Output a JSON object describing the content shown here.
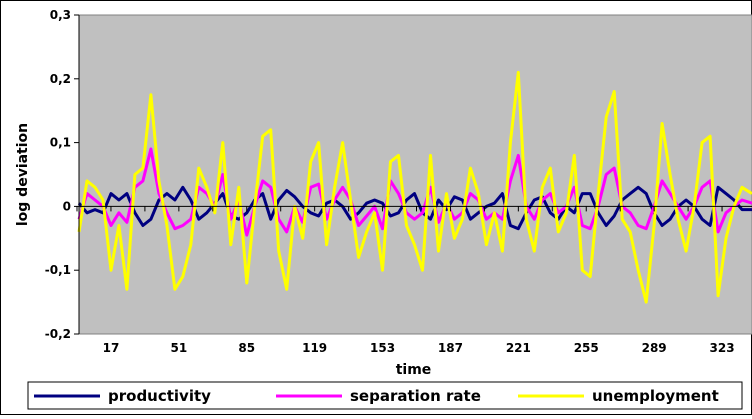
{
  "chart_data": {
    "type": "line",
    "xlabel": "time",
    "ylabel": "log deviation",
    "xlim": [
      1,
      338
    ],
    "ylim": [
      -0.2,
      0.3
    ],
    "x_ticks": [
      17,
      51,
      85,
      119,
      153,
      187,
      221,
      255,
      289,
      323
    ],
    "y_ticks": [
      -0.2,
      -0.1,
      0,
      0.1,
      0.2,
      0.3
    ],
    "y_tick_labels": [
      "-0,2",
      "-0,1",
      "0",
      "0,1",
      "0,2",
      "0,3"
    ],
    "grid": false,
    "plot_background": "#c0c0c0",
    "legend_position": "bottom",
    "series": [
      {
        "name": "productivity",
        "color": "#000080",
        "x": [
          1,
          5,
          9,
          13,
          17,
          21,
          25,
          29,
          33,
          37,
          41,
          45,
          49,
          53,
          57,
          61,
          65,
          69,
          73,
          77,
          81,
          85,
          89,
          93,
          97,
          101,
          105,
          109,
          113,
          117,
          121,
          125,
          129,
          133,
          137,
          141,
          145,
          149,
          153,
          157,
          161,
          165,
          169,
          173,
          177,
          181,
          185,
          189,
          193,
          197,
          201,
          205,
          209,
          213,
          217,
          221,
          225,
          229,
          233,
          237,
          241,
          245,
          249,
          253,
          257,
          261,
          265,
          269,
          273,
          277,
          281,
          285,
          289,
          293,
          297,
          301,
          305,
          309,
          313,
          317,
          321,
          325,
          329,
          333,
          338
        ],
        "y": [
          0.005,
          -0.01,
          -0.005,
          -0.01,
          0.02,
          0.01,
          0.02,
          -0.01,
          -0.03,
          -0.02,
          0.01,
          0.02,
          0.01,
          0.03,
          0.01,
          -0.02,
          -0.01,
          0.005,
          0.02,
          -0.015,
          -0.02,
          -0.01,
          0.01,
          0.02,
          -0.02,
          0.01,
          0.025,
          0.015,
          0.0,
          -0.01,
          -0.015,
          0.005,
          0.01,
          0.0,
          -0.02,
          -0.01,
          0.005,
          0.01,
          0.005,
          -0.015,
          -0.01,
          0.01,
          0.02,
          -0.01,
          -0.02,
          0.01,
          -0.005,
          0.015,
          0.01,
          -0.02,
          -0.01,
          0.0,
          0.005,
          0.02,
          -0.03,
          -0.035,
          -0.01,
          0.01,
          0.015,
          -0.01,
          -0.02,
          0.0,
          -0.01,
          0.02,
          0.02,
          -0.01,
          -0.03,
          -0.015,
          0.01,
          0.02,
          0.03,
          0.02,
          -0.01,
          -0.03,
          -0.02,
          0.0,
          0.01,
          0.0,
          -0.02,
          -0.03,
          0.03,
          0.02,
          0.01,
          -0.005,
          -0.005
        ]
      },
      {
        "name": "separation rate",
        "color": "#ff00ff",
        "x": [
          1,
          5,
          9,
          13,
          17,
          21,
          25,
          29,
          33,
          37,
          41,
          45,
          49,
          53,
          57,
          61,
          65,
          69,
          73,
          77,
          81,
          85,
          89,
          93,
          97,
          101,
          105,
          109,
          113,
          117,
          121,
          125,
          129,
          133,
          137,
          141,
          145,
          149,
          153,
          157,
          161,
          165,
          169,
          173,
          177,
          181,
          185,
          189,
          193,
          197,
          201,
          205,
          209,
          213,
          217,
          221,
          225,
          229,
          233,
          237,
          241,
          245,
          249,
          253,
          257,
          261,
          265,
          269,
          273,
          277,
          281,
          285,
          289,
          293,
          297,
          301,
          305,
          309,
          313,
          317,
          321,
          325,
          329,
          333,
          338
        ],
        "y": [
          -0.02,
          0.02,
          0.01,
          0.0,
          -0.03,
          -0.01,
          -0.025,
          0.03,
          0.04,
          0.09,
          0.02,
          -0.01,
          -0.035,
          -0.03,
          -0.02,
          0.03,
          0.02,
          0.0,
          0.05,
          -0.02,
          0.01,
          -0.045,
          0.0,
          0.04,
          0.03,
          -0.02,
          -0.04,
          0.0,
          -0.025,
          0.03,
          0.035,
          -0.02,
          0.01,
          0.03,
          0.01,
          -0.03,
          -0.015,
          0.0,
          -0.035,
          0.04,
          0.02,
          -0.01,
          -0.02,
          -0.01,
          0.03,
          -0.025,
          0.005,
          -0.02,
          -0.01,
          0.02,
          0.01,
          -0.02,
          -0.01,
          -0.02,
          0.04,
          0.08,
          0.0,
          -0.02,
          0.01,
          0.02,
          -0.01,
          0.0,
          0.03,
          -0.03,
          -0.035,
          0.0,
          0.05,
          0.06,
          0.0,
          -0.01,
          -0.03,
          -0.035,
          0.0,
          0.04,
          0.02,
          0.0,
          -0.02,
          0.0,
          0.03,
          0.04,
          -0.04,
          -0.01,
          0.0,
          0.01,
          0.005
        ]
      },
      {
        "name": "unemployment",
        "color": "#ffff00",
        "x": [
          1,
          5,
          9,
          13,
          17,
          21,
          25,
          29,
          33,
          37,
          41,
          45,
          49,
          53,
          57,
          61,
          65,
          69,
          73,
          77,
          81,
          85,
          89,
          93,
          97,
          101,
          105,
          109,
          113,
          117,
          121,
          125,
          129,
          133,
          137,
          141,
          145,
          149,
          153,
          157,
          161,
          165,
          169,
          173,
          177,
          181,
          185,
          189,
          193,
          197,
          201,
          205,
          209,
          213,
          217,
          221,
          225,
          229,
          233,
          237,
          241,
          245,
          249,
          253,
          257,
          261,
          265,
          269,
          273,
          277,
          281,
          285,
          289,
          293,
          297,
          301,
          305,
          309,
          313,
          317,
          321,
          325,
          329,
          333,
          338
        ],
        "y": [
          -0.04,
          0.04,
          0.03,
          0.01,
          -0.1,
          -0.03,
          -0.13,
          0.05,
          0.06,
          0.175,
          0.04,
          -0.03,
          -0.13,
          -0.11,
          -0.06,
          0.06,
          0.03,
          -0.01,
          0.1,
          -0.06,
          0.03,
          -0.12,
          0.0,
          0.11,
          0.12,
          -0.07,
          -0.13,
          0.0,
          -0.05,
          0.07,
          0.1,
          -0.06,
          0.03,
          0.1,
          0.01,
          -0.08,
          -0.04,
          -0.01,
          -0.1,
          0.07,
          0.08,
          -0.03,
          -0.06,
          -0.1,
          0.08,
          -0.07,
          0.02,
          -0.05,
          -0.02,
          0.06,
          0.02,
          -0.06,
          -0.01,
          -0.07,
          0.1,
          0.21,
          -0.02,
          -0.07,
          0.03,
          0.06,
          -0.04,
          -0.01,
          0.08,
          -0.1,
          -0.11,
          0.02,
          0.14,
          0.18,
          -0.02,
          -0.04,
          -0.1,
          -0.15,
          -0.03,
          0.13,
          0.05,
          -0.02,
          -0.07,
          0.0,
          0.1,
          0.11,
          -0.14,
          -0.05,
          0.0,
          0.03,
          0.02
        ]
      }
    ]
  }
}
